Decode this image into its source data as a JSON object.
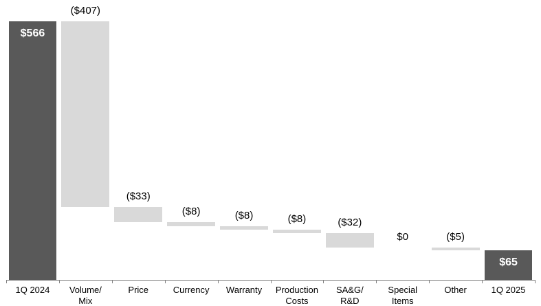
{
  "chart_data": {
    "type": "bar",
    "subtype": "waterfall",
    "title": "",
    "xlabel": "",
    "ylabel": "",
    "grid": false,
    "legend": "none",
    "ylim": [
      0,
      600
    ],
    "categories": [
      "1Q 2024",
      "Volume/\nMix",
      "Price",
      "Currency",
      "Warranty",
      "Production\nCosts",
      "SA&G/\nR&D",
      "Special\nItems",
      "Other",
      "1Q 2025"
    ],
    "values": [
      566,
      -407,
      -33,
      -8,
      -8,
      -8,
      -32,
      0,
      -5,
      65
    ],
    "roles": [
      "total",
      "delta",
      "delta",
      "delta",
      "delta",
      "delta",
      "delta",
      "delta",
      "delta",
      "total"
    ],
    "value_labels": [
      "$566",
      "($407)",
      "($33)",
      "($8)",
      "($8)",
      "($8)",
      "($32)",
      "$0",
      "($5)",
      "$65"
    ],
    "running_totals": [
      566,
      159,
      126,
      118,
      110,
      102,
      70,
      70,
      65,
      65
    ],
    "colors": {
      "total_bar": "#595959",
      "delta_bar": "#d9d9d9",
      "axis": "#808080",
      "label_inside": "#ffffff",
      "label_outside": "#000000"
    }
  }
}
